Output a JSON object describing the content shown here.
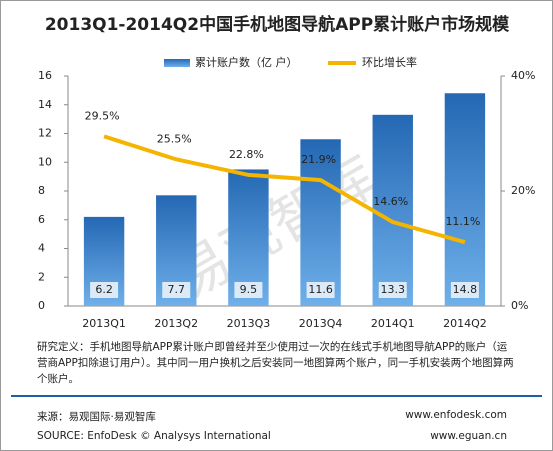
{
  "chart_data": {
    "type": "bar",
    "title": "2013Q1-2014Q2中国手机地图导航APP累计账户市场规模",
    "categories": [
      "2013Q1",
      "2013Q2",
      "2013Q3",
      "2013Q4",
      "2014Q1",
      "2014Q2"
    ],
    "series": [
      {
        "name": "累计账户数（亿 户）",
        "type": "bar",
        "color": "#2468b4",
        "values": [
          6.2,
          7.7,
          9.5,
          11.6,
          13.3,
          14.8
        ]
      },
      {
        "name": "环比增长率",
        "type": "line",
        "axis": "y2",
        "color": "#f5b400",
        "values": [
          29.5,
          25.5,
          22.8,
          21.9,
          14.6,
          11.1
        ],
        "value_labels": [
          "29.5%",
          "25.5%",
          "22.8%",
          "21.9%",
          "14.6%",
          "11.1%"
        ]
      }
    ],
    "ylim": [
      0,
      16
    ],
    "yticks": [
      0,
      2,
      4,
      6,
      8,
      10,
      12,
      14,
      16
    ],
    "y2lim": [
      0,
      40
    ],
    "y2ticks": [
      {
        "value": 0,
        "label": "0%"
      },
      {
        "value": 20,
        "label": "20%"
      },
      {
        "value": 40,
        "label": "40%"
      }
    ],
    "legend": "top",
    "grid": false
  },
  "watermark": "易观智库",
  "footnote": "研究定义：手机地图导航APP累计账户即曾经并至少使用过一次的在线式手机地图导航APP的账户（运营商APP扣除退订用户）。其中同一用户换机之后安装同一地图算两个账户，同一手机安装两个地图算两个账户。",
  "source": "来源：易观国际·易观智库",
  "source_en": "SOURCE: EnfoDesk © Analysys International",
  "website1": "www.enfodesk.com",
  "website2": "www.eguan.cn"
}
